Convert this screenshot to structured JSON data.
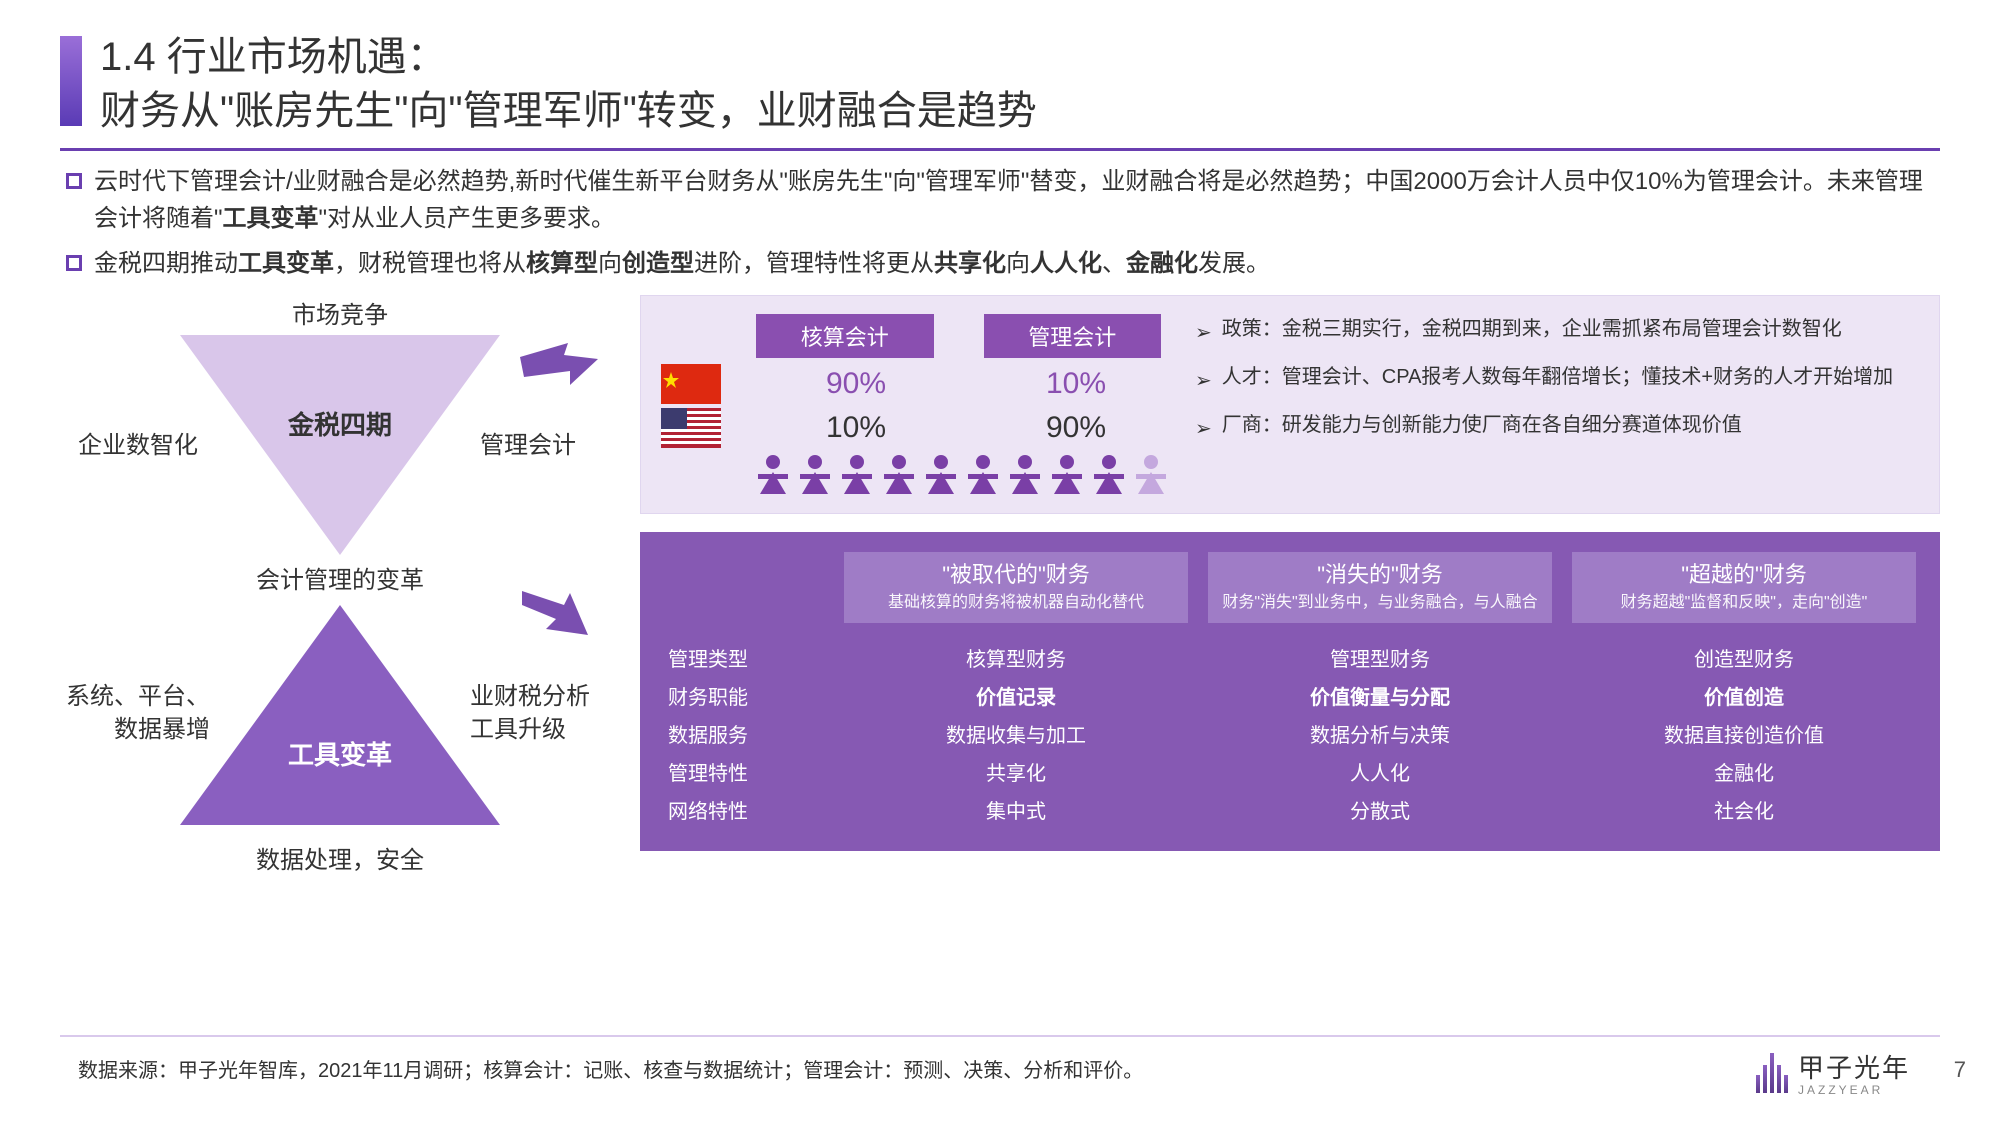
{
  "title": {
    "line1": "1.4 行业市场机遇：",
    "line2": "财务从\"账房先生\"向\"管理军师\"转变，业财融合是趋势"
  },
  "accent_gradient": {
    "from": "#9a6fd8",
    "to": "#5a3bb5"
  },
  "divider_color": "#6a3fb0",
  "bullets": [
    "云时代下管理会计/业财融合是必然趋势,新时代催生新平台财务从\"账房先生\"向\"管理军师\"替变，业财融合将是必然趋势；中国2000万会计人员中仅10%为管理会计。未来管理会计将随着\"工具变革\"对从业人员产生更多要求。",
    "金税四期推动工具变革，财税管理也将从核算型向创造型进阶，管理特性将更从共享化向人人化、金融化发展。"
  ],
  "triangles": {
    "top": {
      "fill": "#d9c6ea",
      "core": "金税四期",
      "labels": {
        "top": "市场竞争",
        "left": "企业数智化",
        "right": "管理会计"
      }
    },
    "mid_label": "会计管理的变革",
    "bottom": {
      "fill": "#8a5fc0",
      "core": "工具变革",
      "core_color": "#ffffff",
      "labels": {
        "left1": "系统、平台、",
        "left2": "数据暴增",
        "right1": "业财税分析",
        "right2": "工具升级",
        "bottom": "数据处理，安全"
      }
    },
    "arrow_color": "#7a4fb0"
  },
  "stats": {
    "panel_bg": "#ede5f5",
    "headers": [
      {
        "label": "核算会计",
        "bg": "#8a4fb0"
      },
      {
        "label": "管理会计",
        "bg": "#8a4fb0"
      }
    ],
    "rows": [
      {
        "flag": "cn",
        "v1": "90%",
        "v1_color": "#8a4fb0",
        "v2": "10%",
        "v2_color": "#8a4fb0"
      },
      {
        "flag": "us",
        "v1": "10%",
        "v1_color": "#333333",
        "v2": "90%",
        "v2_color": "#333333"
      }
    ],
    "people_dark": 9,
    "people_light": 1,
    "people_dark_color": "#7a3fa6",
    "people_light_color": "#c4a8de",
    "notes": [
      "政策：金税三期实行，金税四期到来，企业需抓紧布局管理会计数智化",
      "人才：管理会计、CPA报考人数每年翻倍增长；懂技术+财务的人才开始增加",
      "厂商：研发能力与创新能力使厂商在各自细分赛道体现价值"
    ]
  },
  "matrix": {
    "panel_bg": "#8659b3",
    "head_bg": "#9f7cc6",
    "headers": [
      {
        "title": "\"被取代的\"财务",
        "sub": "基础核算的财务将被机器自动化替代"
      },
      {
        "title": "\"消失的\"财务",
        "sub": "财务\"消失\"到业务中，与业务融合，与人融合"
      },
      {
        "title": "\"超越的\"财务",
        "sub": "财务超越\"监督和反映\"，走向\"创造\""
      }
    ],
    "rows": [
      {
        "label": "管理类型",
        "c1": "核算型财务",
        "c2": "管理型财务",
        "c3": "创造型财务",
        "bold": false
      },
      {
        "label": "财务职能",
        "c1": "价值记录",
        "c2": "价值衡量与分配",
        "c3": "价值创造",
        "bold": true
      },
      {
        "label": "数据服务",
        "c1": "数据收集与加工",
        "c2": "数据分析与决策",
        "c3": "数据直接创造价值",
        "bold": false
      },
      {
        "label": "管理特性",
        "c1": "共享化",
        "c2": "人人化",
        "c3": "金融化",
        "bold": false
      },
      {
        "label": "网络特性",
        "c1": "集中式",
        "c2": "分散式",
        "c3": "社会化",
        "bold": false
      }
    ]
  },
  "footer": "数据来源：甲子光年智库，2021年11月调研；核算会计：记账、核查与数据统计；管理会计：预测、决策、分析和评价。",
  "brand": {
    "name": "甲子光年",
    "sub": "JAZZYEAR"
  },
  "page": "7"
}
